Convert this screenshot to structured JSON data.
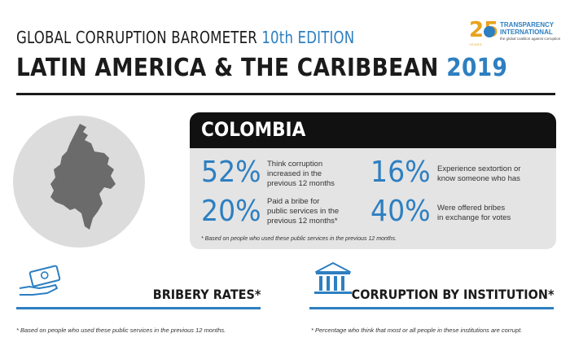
{
  "header": {
    "title_prefix": "GLOBAL CORRUPTION BAROMETER",
    "edition": "10th EDITION",
    "region": "LATIN AMERICA & THE CARIBBEAN",
    "year": "2019"
  },
  "logo": {
    "anniversary": "25",
    "years": "YEARS",
    "name_line1": "TRANSPARENCY",
    "name_line2": "INTERNATIONAL",
    "tagline": "the global coalition against corruption"
  },
  "country": {
    "name": "COLOMBIA",
    "map_icon": "colombia-map-silhouette"
  },
  "stats": [
    {
      "value": "52%",
      "line1": "Think corruption",
      "line2": "increased in the",
      "line3": "previous 12 months"
    },
    {
      "value": "16%",
      "line1": "Experience sextortion or",
      "line2": "know someone who has",
      "line3": ""
    },
    {
      "value": "20%",
      "line1": "Paid a bribe for",
      "line2": "public services in the",
      "line3": "previous 12 months*"
    },
    {
      "value": "40%",
      "line1": "Were offered bribes",
      "line2": "in exchange for votes",
      "line3": ""
    }
  ],
  "card_note": "* Based on people who used these public services in the previous 12 months.",
  "sections": {
    "bribery": {
      "title": "BRIBERY RATES*",
      "icon": "cash-hand-icon",
      "note": "* Based on people who used these public services in the previous 12 months."
    },
    "institution": {
      "title": "CORRUPTION BY INSTITUTION*",
      "icon": "institution-building-icon",
      "note": "* Percentage who think that most or all people in these institutions are corrupt."
    }
  },
  "colors": {
    "accent": "#2d7fc1",
    "dark": "#111111",
    "card_bg": "#e4e4e4",
    "logo_gold": "#e8a21c"
  }
}
